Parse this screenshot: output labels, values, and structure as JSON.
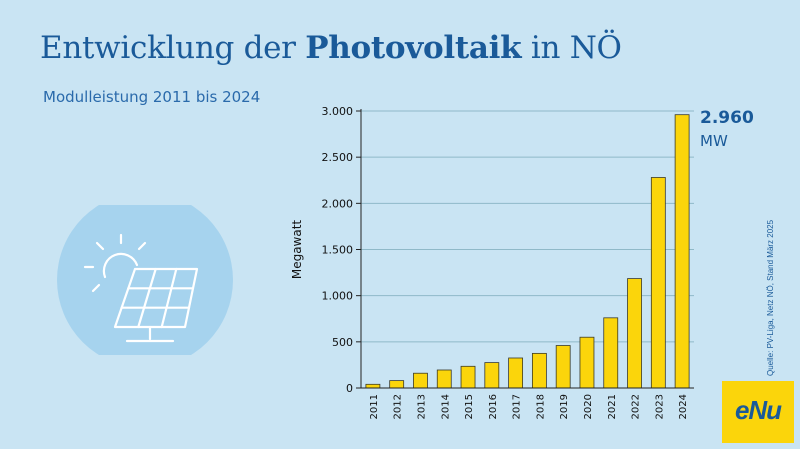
{
  "header": {
    "title_part1": "Entwicklung der ",
    "title_bold": "Photovoltaik",
    "title_part2": " in NÖ",
    "subtitle": "Modulleistung 2011 bis 2024"
  },
  "highlight": {
    "value": "2.960",
    "unit": "MW"
  },
  "source": "Quelle: PV-Liga, Netz NÖ, Stand März 2025",
  "logo": {
    "text": "eNu"
  },
  "icon": "solar-panel-with-sun-icon",
  "colors": {
    "background": "#c9e4f3",
    "bar": "#fbd50b",
    "title": "#1a5a99",
    "icon_circle": "#a6d3ee"
  },
  "chart_data": {
    "type": "bar",
    "categories": [
      "2011",
      "2012",
      "2013",
      "2014",
      "2015",
      "2016",
      "2017",
      "2018",
      "2019",
      "2020",
      "2021",
      "2022",
      "2023",
      "2024"
    ],
    "values": [
      40,
      80,
      160,
      195,
      235,
      275,
      325,
      375,
      460,
      550,
      760,
      1185,
      2280,
      2960
    ],
    "ylabel": "Megawatt",
    "ylim": [
      0,
      3000
    ],
    "yticks": [
      0,
      500,
      1000,
      1500,
      2000,
      2500,
      3000
    ],
    "ytick_labels": [
      "0",
      "500",
      "1.000",
      "1.500",
      "2.000",
      "2.500",
      "3.000"
    ],
    "grid": true
  }
}
